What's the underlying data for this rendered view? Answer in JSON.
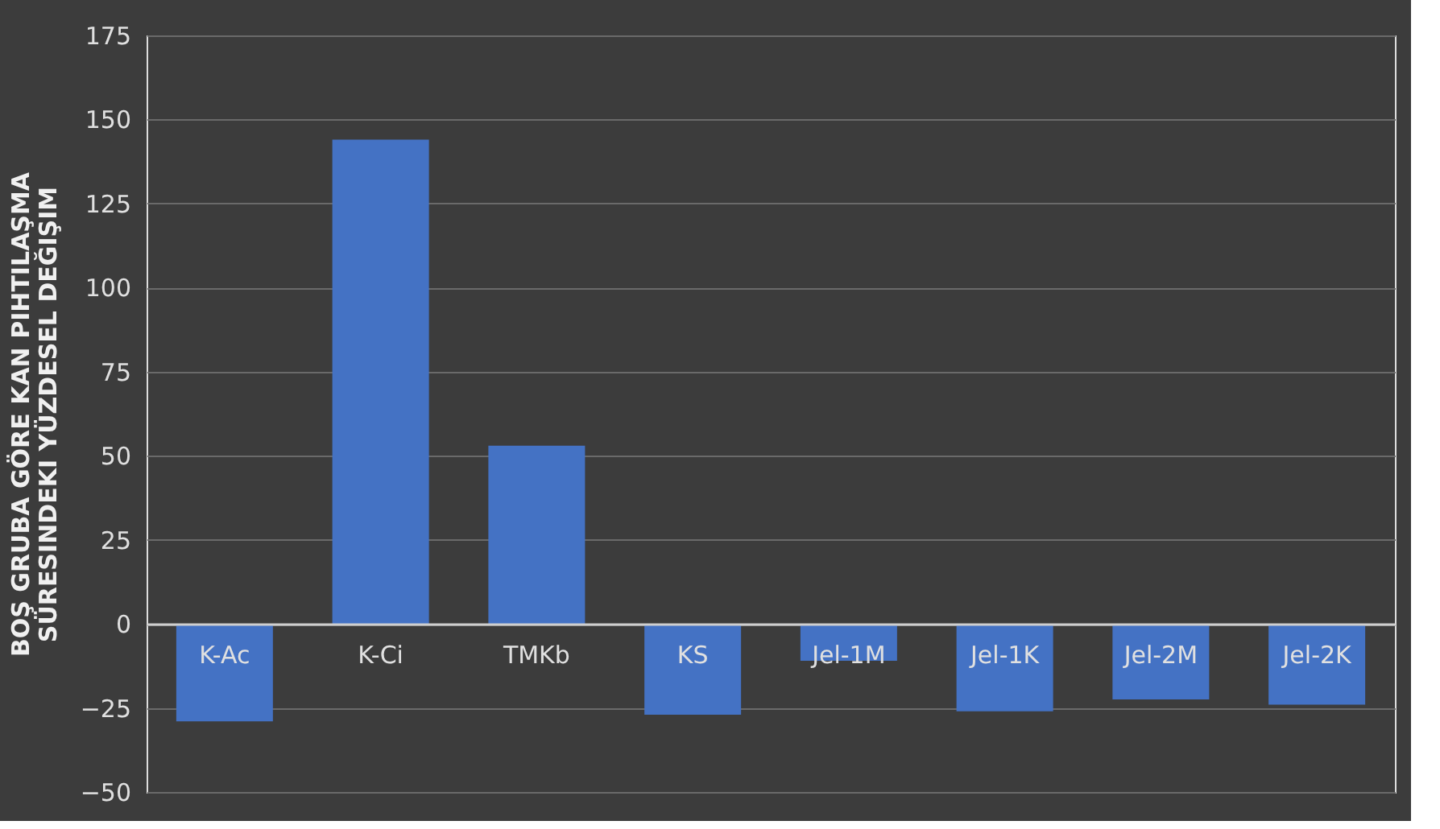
{
  "chart_data": {
    "type": "bar",
    "ylabel": [
      "BOŞ GRUBA GÖRE KAN PIHTILAŞMA",
      "SÜRESINDEKI YÜZDESEL DEĞIŞIM"
    ],
    "categories": [
      "K-Ac",
      "K-Ci",
      "TMKb",
      "KS",
      "Jel-1M",
      "Jel-1K",
      "Jel-2M",
      "Jel-2K"
    ],
    "values": [
      -29,
      144,
      53,
      -27,
      -11,
      -26,
      -22.5,
      -24
    ],
    "color": "#4472c4",
    "ylim": [
      -50,
      175
    ],
    "yticks": [
      -50,
      -25,
      0,
      25,
      50,
      75,
      100,
      125,
      150,
      175
    ],
    "grid": "y"
  }
}
